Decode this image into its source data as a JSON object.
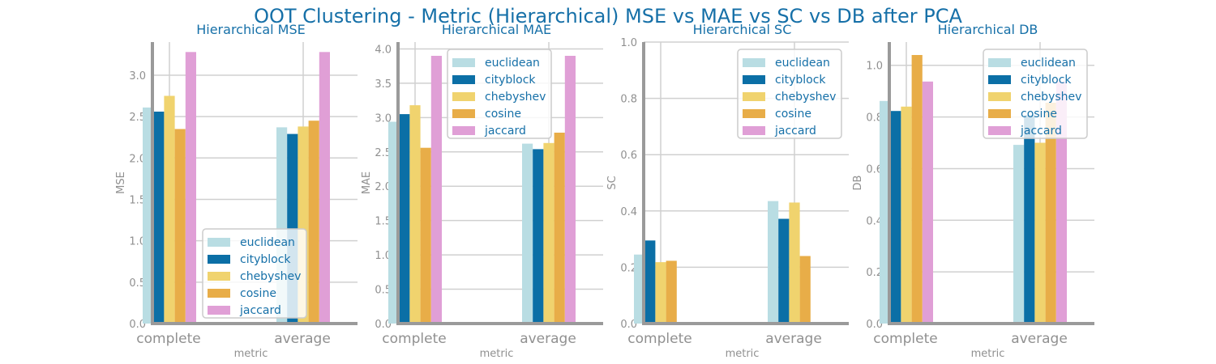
{
  "figure": {
    "suptitle": "OOT Clustering - Metric (Hierarchical) MSE vs MAE vs SC vs DB after PCA",
    "colors": {
      "title": "#1670a8",
      "axis": "#909090",
      "grid": "#d0d0d0",
      "legend_text": "#1670a8"
    }
  },
  "chart_data": [
    {
      "type": "bar",
      "title": "Hierarchical MSE",
      "xlabel": "metric",
      "ylabel": "MSE",
      "categories": [
        "complete",
        "average"
      ],
      "ylim": [
        0,
        3.4
      ],
      "yticks": [
        "0.0",
        "0.5",
        "1.0",
        "1.5",
        "2.0",
        "2.5",
        "3.0"
      ],
      "legend_position": "bottom-right",
      "grid": true,
      "series": [
        {
          "name": "euclidean",
          "color": "#b9dde3",
          "values": [
            2.61,
            2.37
          ]
        },
        {
          "name": "cityblock",
          "color": "#0b6fa6",
          "values": [
            2.56,
            2.29
          ]
        },
        {
          "name": "chebyshev",
          "color": "#f0d36e",
          "values": [
            2.75,
            2.38
          ]
        },
        {
          "name": "cosine",
          "color": "#e8ad48",
          "values": [
            2.35,
            2.45
          ]
        },
        {
          "name": "jaccard",
          "color": "#e09fd6",
          "values": [
            3.28,
            3.28
          ]
        }
      ]
    },
    {
      "type": "bar",
      "title": "Hierarchical MAE",
      "xlabel": "metric",
      "ylabel": "MAE",
      "categories": [
        "complete",
        "average"
      ],
      "ylim": [
        0,
        4.1
      ],
      "yticks": [
        "0.0",
        "0.5",
        "1.0",
        "1.5",
        "2.0",
        "2.5",
        "3.0",
        "3.5",
        "4.0"
      ],
      "legend_position": "top-center",
      "grid": true,
      "series": [
        {
          "name": "euclidean",
          "color": "#b9dde3",
          "values": [
            2.94,
            2.62
          ]
        },
        {
          "name": "cityblock",
          "color": "#0b6fa6",
          "values": [
            3.05,
            2.54
          ]
        },
        {
          "name": "chebyshev",
          "color": "#f0d36e",
          "values": [
            3.18,
            2.63
          ]
        },
        {
          "name": "cosine",
          "color": "#e8ad48",
          "values": [
            2.56,
            2.78
          ]
        },
        {
          "name": "jaccard",
          "color": "#e09fd6",
          "values": [
            3.9,
            3.9
          ]
        }
      ]
    },
    {
      "type": "bar",
      "title": "Hierarchical SC",
      "xlabel": "metric",
      "ylabel": "SC",
      "categories": [
        "complete",
        "average"
      ],
      "ylim": [
        0,
        1.0
      ],
      "yticks": [
        "0.0",
        "0.2",
        "0.4",
        "0.6",
        "0.8",
        "1.0"
      ],
      "legend_position": "top-right",
      "grid": true,
      "series": [
        {
          "name": "euclidean",
          "color": "#b9dde3",
          "values": [
            0.245,
            0.435
          ]
        },
        {
          "name": "cityblock",
          "color": "#0b6fa6",
          "values": [
            0.295,
            0.372
          ]
        },
        {
          "name": "chebyshev",
          "color": "#f0d36e",
          "values": [
            0.218,
            0.43
          ]
        },
        {
          "name": "cosine",
          "color": "#e8ad48",
          "values": [
            0.223,
            0.24
          ]
        },
        {
          "name": "jaccard",
          "color": "#e09fd6",
          "values": [
            0,
            0
          ]
        }
      ]
    },
    {
      "type": "bar",
      "title": "Hierarchical DB",
      "xlabel": "metric",
      "ylabel": "DB",
      "categories": [
        "complete",
        "average"
      ],
      "ylim": [
        0,
        1.09
      ],
      "yticks": [
        "0.0",
        "0.2",
        "0.4",
        "0.6",
        "0.8",
        "1.0"
      ],
      "legend_position": "top-right",
      "grid": true,
      "series": [
        {
          "name": "euclidean",
          "color": "#b9dde3",
          "values": [
            0.862,
            0.692
          ]
        },
        {
          "name": "cityblock",
          "color": "#0b6fa6",
          "values": [
            0.823,
            0.807
          ]
        },
        {
          "name": "chebyshev",
          "color": "#f0d36e",
          "values": [
            0.84,
            0.7
          ]
        },
        {
          "name": "cosine",
          "color": "#e8ad48",
          "values": [
            1.04,
            0.855
          ]
        },
        {
          "name": "jaccard",
          "color": "#e09fd6",
          "values": [
            0.937,
            0.937
          ]
        }
      ]
    }
  ]
}
